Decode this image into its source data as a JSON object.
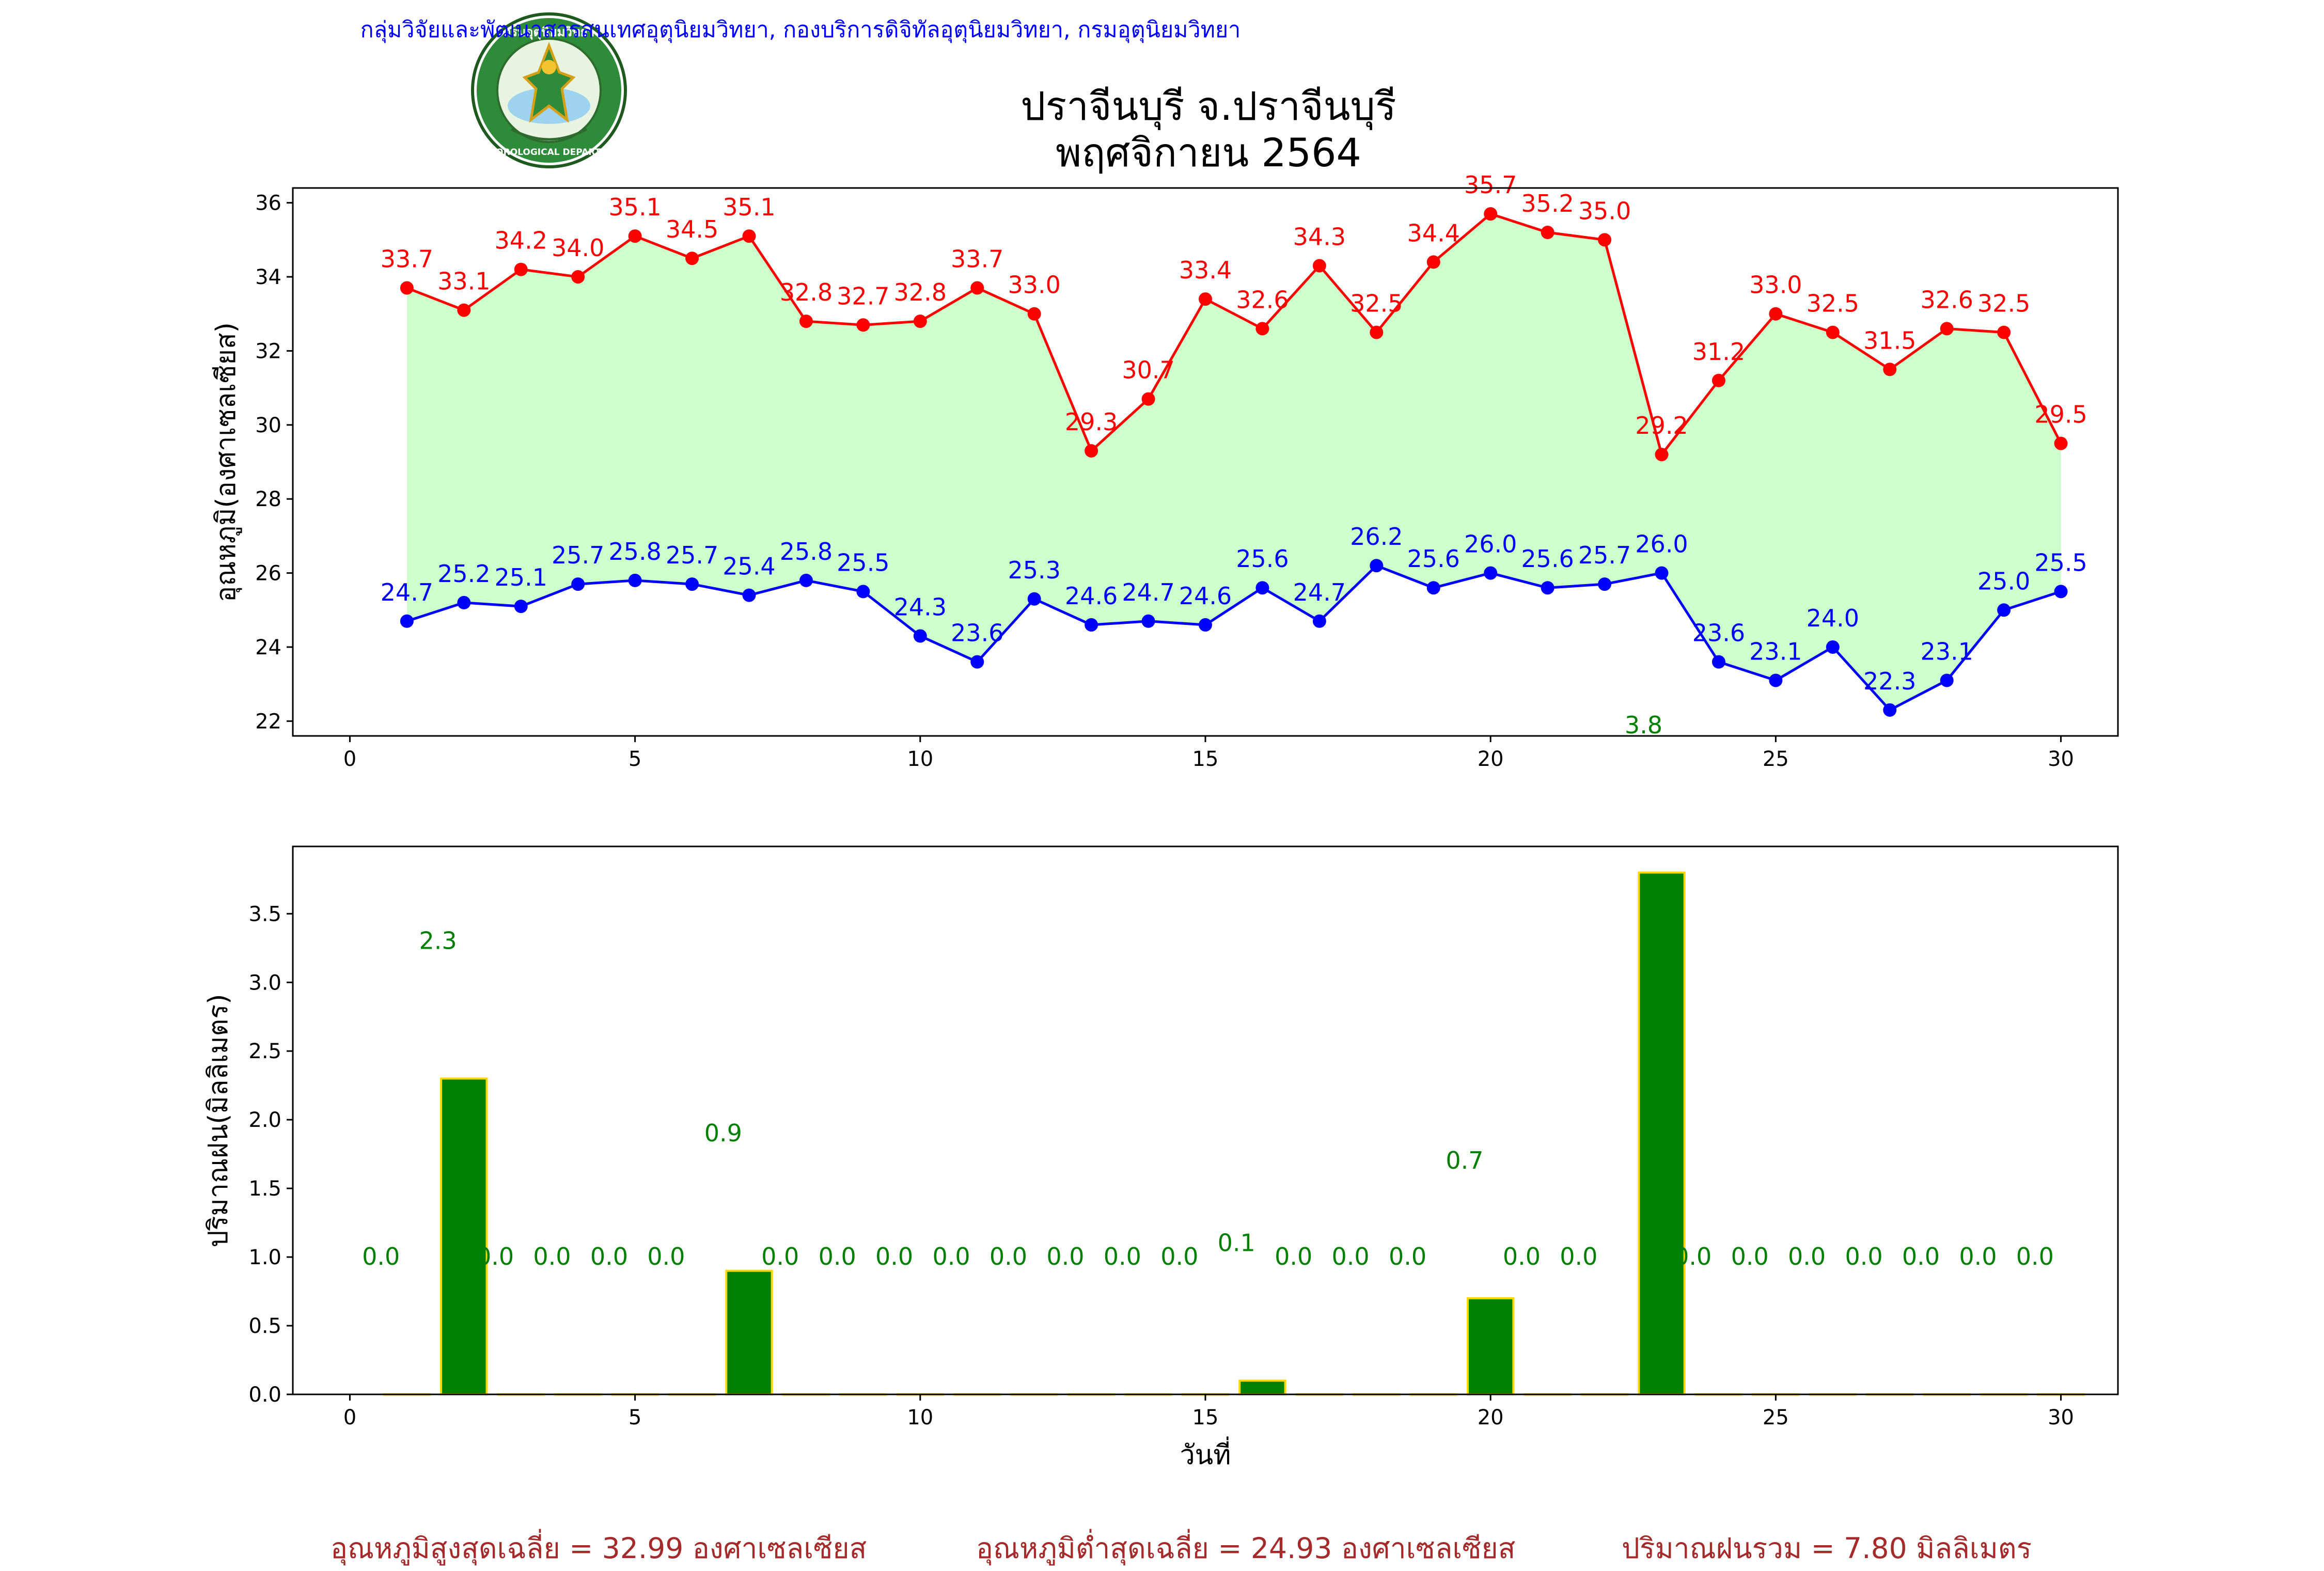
{
  "header": {
    "agency_line": "กลุ่มวิจัยและพัฒนาสารสนเทศอุตุนิยมวิทยา, กองบริการดิจิทัลอุตุนิยมวิทยา, กรมอุตุนิยมวิทยา",
    "title_line1": "ปราจีนบุรี จ.ปราจีนบุรี",
    "title_line2": "พฤศจิกายน 2564",
    "logo_text_top": "กรมอุตุนิยมวิทยา",
    "logo_text_bottom": "METEOROLOGICAL DEPARTMENT"
  },
  "footer": {
    "avg_max": "อุณหภูมิสูงสุดเฉลี่ย = 32.99 องศาเซลเซียส",
    "avg_min": "อุณหภูมิต่ำสุดเฉลี่ย = 24.93 องศาเซลเซียส",
    "total_rain": "ปริมาณฝนรวม = 7.80 มิลลิเมตร"
  },
  "colors": {
    "max_line": "#ff0000",
    "min_line": "#0000ff",
    "fill": "#ccffcc",
    "rain_bar": "#008000",
    "rain_edge": "#ffd700",
    "rain_label": "#008000",
    "footer_text": "#a52a2a",
    "agency_text": "#0000ff"
  },
  "chart_data": [
    {
      "type": "line",
      "ylabel": "อุณหภูมิ(องศาเซลเซียส)",
      "xlim": [
        -1,
        31
      ],
      "ylim": [
        21.6,
        36.4
      ],
      "xticks": [
        0,
        5,
        10,
        15,
        20,
        25,
        30
      ],
      "yticks": [
        22,
        24,
        26,
        28,
        30,
        32,
        34,
        36
      ],
      "x": [
        1,
        2,
        3,
        4,
        5,
        6,
        7,
        8,
        9,
        10,
        11,
        12,
        13,
        14,
        15,
        16,
        17,
        18,
        19,
        20,
        21,
        22,
        23,
        24,
        25,
        26,
        27,
        28,
        29,
        30
      ],
      "series": [
        {
          "values": [
            33.7,
            33.1,
            34.2,
            34.0,
            35.1,
            34.5,
            35.1,
            32.8,
            32.7,
            32.8,
            33.7,
            33.0,
            29.3,
            30.7,
            33.4,
            32.6,
            34.3,
            32.5,
            34.4,
            35.7,
            35.2,
            35.0,
            29.2,
            31.2,
            33.0,
            32.5,
            31.5,
            32.6,
            32.5,
            29.5
          ]
        },
        {
          "values": [
            24.7,
            25.2,
            25.1,
            25.7,
            25.8,
            25.7,
            25.4,
            25.8,
            25.5,
            24.3,
            23.6,
            25.3,
            24.6,
            24.7,
            24.6,
            25.6,
            24.7,
            26.2,
            25.6,
            26.0,
            25.6,
            25.7,
            26.0,
            23.6,
            23.1,
            24.0,
            22.3,
            23.1,
            25.0,
            25.5
          ]
        }
      ],
      "annotations": [
        {
          "x": 23,
          "text": "3.8"
        }
      ]
    },
    {
      "type": "bar",
      "xlabel": "วันที่",
      "ylabel": "ปริมาณฝน(มิลลิเมตร)",
      "xlim": [
        -1,
        31
      ],
      "ylim": [
        0,
        3.99
      ],
      "xticks": [
        0,
        5,
        10,
        15,
        20,
        25,
        30
      ],
      "yticks": [
        0.0,
        0.5,
        1.0,
        1.5,
        2.0,
        2.5,
        3.0,
        3.5
      ],
      "x": [
        1,
        2,
        3,
        4,
        5,
        6,
        7,
        8,
        9,
        10,
        11,
        12,
        13,
        14,
        15,
        16,
        17,
        18,
        19,
        20,
        21,
        22,
        23,
        24,
        25,
        26,
        27,
        28,
        29,
        30
      ],
      "values": [
        0.0,
        2.3,
        0.0,
        0.0,
        0.0,
        0.0,
        0.9,
        0.0,
        0.0,
        0.0,
        0.0,
        0.0,
        0.0,
        0.0,
        0.0,
        0.1,
        0.0,
        0.0,
        0.0,
        0.7,
        0.0,
        0.0,
        3.8,
        0.0,
        0.0,
        0.0,
        0.0,
        0.0,
        0.0,
        0.0
      ],
      "labels": [
        "0.0",
        "2.3",
        "0.0",
        "0.0",
        "0.0",
        "0.0",
        "0.9",
        "0.0",
        "0.0",
        "0.0",
        "0.0",
        "0.0",
        "0.0",
        "0.0",
        "0.0",
        "0.1",
        "0.0",
        "0.0",
        "0.0",
        "0.7",
        "0.0",
        "0.0",
        "3.8",
        "0.0",
        "0.0",
        "0.0",
        "0.0",
        "0.0",
        "0.0",
        "0.0"
      ],
      "label_y": [
        1.0,
        3.3,
        1.0,
        1.0,
        1.0,
        1.0,
        1.9,
        1.0,
        1.0,
        1.0,
        1.0,
        1.0,
        1.0,
        1.0,
        1.0,
        1.1,
        1.0,
        1.0,
        1.0,
        1.7,
        1.0,
        1.0,
        null,
        1.0,
        1.0,
        1.0,
        1.0,
        1.0,
        1.0,
        1.0
      ]
    }
  ]
}
